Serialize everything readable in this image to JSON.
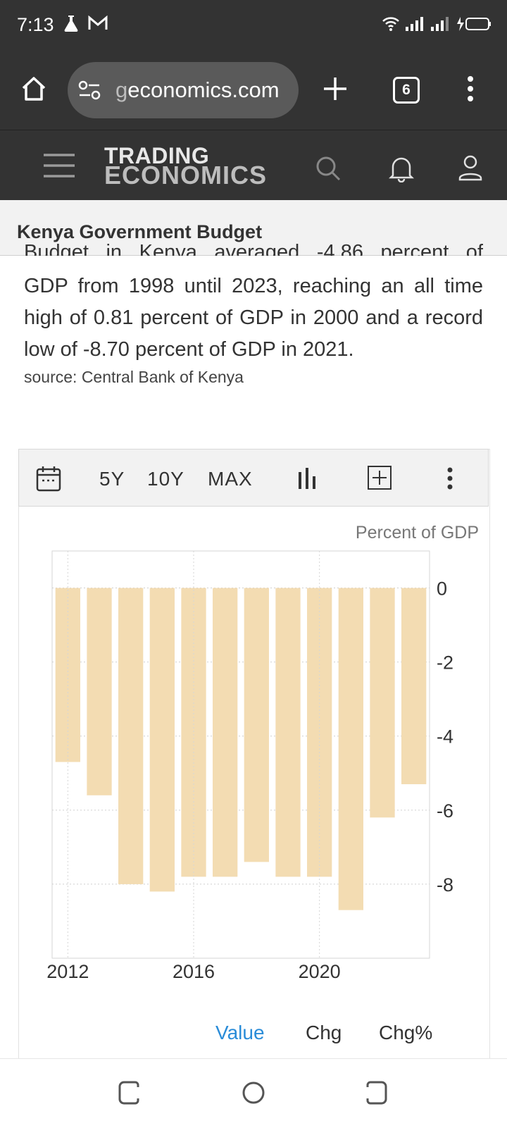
{
  "status": {
    "time": "7:13"
  },
  "browser": {
    "url_dim": "g",
    "url_main": "economics.com",
    "tab_count": "6"
  },
  "site": {
    "logo_top": "TRADING",
    "logo_bottom": "ECONOMICS"
  },
  "page": {
    "title": "Kenya Government Budget",
    "description_partial": "Budget in Kenya averaged -4.86 percent of",
    "description": "GDP from 1998 until 2023, reaching an all time high of 0.81 percent of GDP in 2000 and a record low of -8.70 percent of GDP in 2021.",
    "source": "source: Central Bank of Kenya"
  },
  "toolbar": {
    "range_5y": "5Y",
    "range_10y": "10Y",
    "range_max": "MAX"
  },
  "chart": {
    "unit": "Percent of GDP"
  },
  "tabs": {
    "value": "Value",
    "chg": "Chg",
    "chg_pct": "Chg%"
  },
  "chart_data": {
    "type": "bar",
    "title": "",
    "ylabel": "Percent of GDP",
    "categories": [
      "2012",
      "2013",
      "2014",
      "2015",
      "2016",
      "2017",
      "2018",
      "2019",
      "2020",
      "2021",
      "2022",
      "2023"
    ],
    "values": [
      -4.7,
      -5.6,
      -8.0,
      -8.2,
      -7.8,
      -7.8,
      -7.4,
      -7.8,
      -7.8,
      -8.7,
      -6.2,
      -5.3
    ],
    "x_tick_labels": [
      "2012",
      "2016",
      "2020"
    ],
    "y_tick_labels": [
      "0",
      "-2",
      "-4",
      "-6",
      "-8"
    ],
    "ylim": [
      -10,
      1
    ],
    "bar_color": "#f3dcb2"
  }
}
